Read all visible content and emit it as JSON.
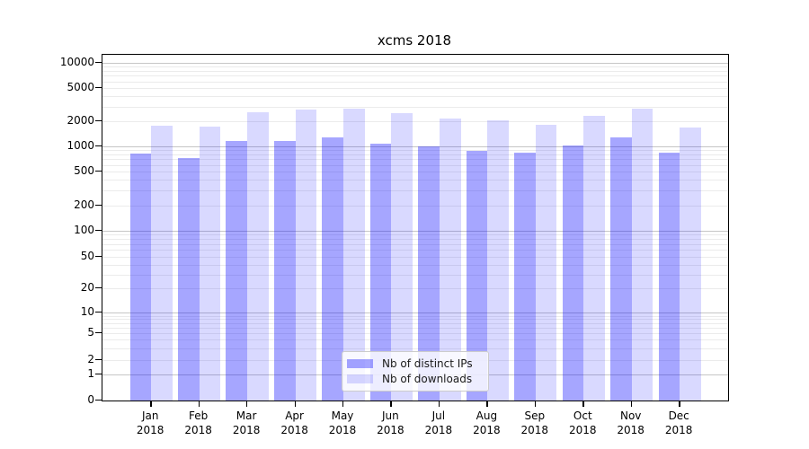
{
  "chart_data": {
    "type": "bar",
    "title": "xcms 2018",
    "categories": [
      "Jan",
      "Feb",
      "Mar",
      "Apr",
      "May",
      "Jun",
      "Jul",
      "Aug",
      "Sep",
      "Oct",
      "Nov",
      "Dec"
    ],
    "category_year": "2018",
    "series": [
      {
        "name": "Nb of distinct IPs",
        "color": "rgba(0,0,255,0.35)",
        "values": [
          830,
          720,
          1150,
          1170,
          1280,
          1080,
          990,
          880,
          845,
          1020,
          1290,
          850
        ]
      },
      {
        "name": "Nb of downloads",
        "color": "rgba(0,0,255,0.15)",
        "values": [
          1750,
          1720,
          2550,
          2750,
          2820,
          2500,
          2150,
          2050,
          1800,
          2310,
          2850,
          1700
        ]
      }
    ],
    "yscale": "symlog",
    "yticks": [
      0,
      1,
      2,
      5,
      10,
      20,
      50,
      100,
      200,
      500,
      1000,
      2000,
      5000,
      10000
    ],
    "ylim": [
      0,
      12500
    ],
    "xlabel": "",
    "ylabel": "",
    "grid": "both",
    "legend_position": "lower center"
  }
}
